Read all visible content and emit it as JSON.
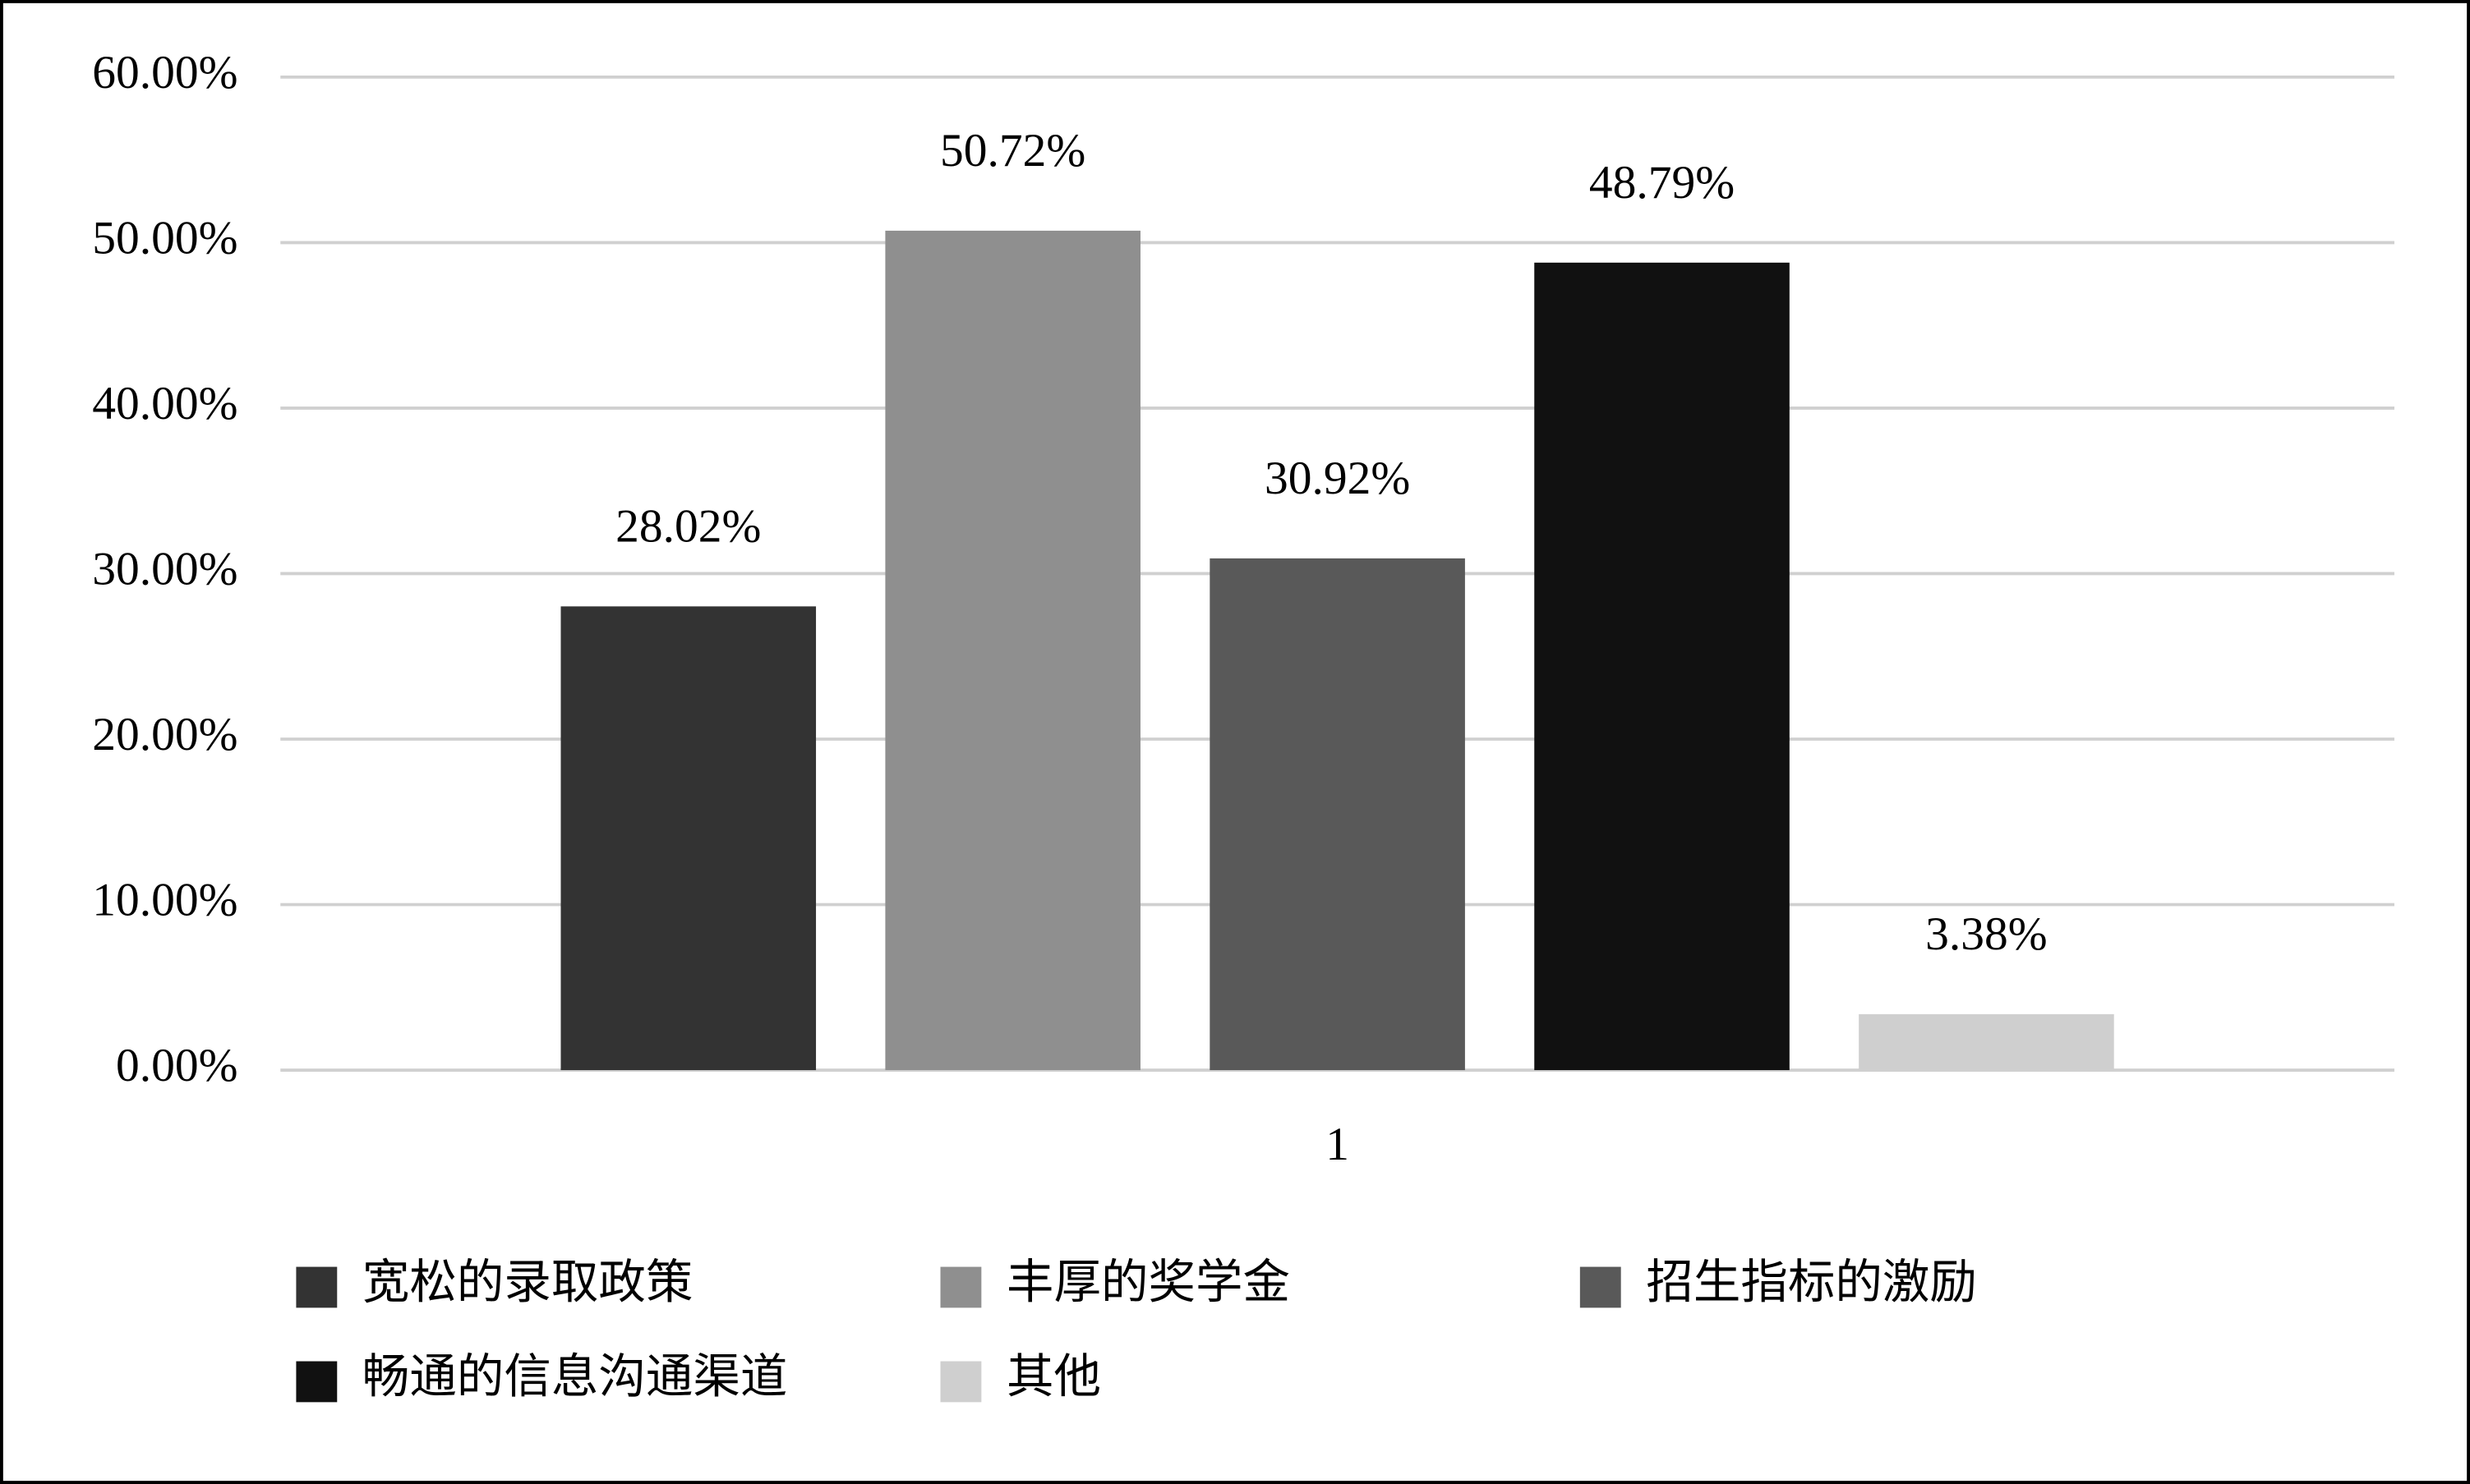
{
  "chart_data": {
    "type": "bar",
    "categories": [
      "1"
    ],
    "series": [
      {
        "name": "宽松的录取政策",
        "color": "#333333",
        "values": [
          28.02
        ],
        "value_labels": [
          "28.02%"
        ]
      },
      {
        "name": "丰厚的奖学金",
        "color": "#8f8f8f",
        "values": [
          50.72
        ],
        "value_labels": [
          "50.72%"
        ]
      },
      {
        "name": "招生指标的激励",
        "color": "#595959",
        "values": [
          30.92
        ],
        "value_labels": [
          "30.92%"
        ]
      },
      {
        "name": "畅通的信息沟通渠道",
        "color": "#111111",
        "values": [
          48.79
        ],
        "value_labels": [
          "48.79%"
        ]
      },
      {
        "name": "其他",
        "color": "#cfcfcf",
        "values": [
          3.38
        ],
        "value_labels": [
          "3.38%"
        ]
      }
    ],
    "ylim": [
      0,
      60
    ],
    "yticks": [
      {
        "value": 0,
        "label": "0.00%"
      },
      {
        "value": 10,
        "label": "10.00%"
      },
      {
        "value": 20,
        "label": "20.00%"
      },
      {
        "value": 30,
        "label": "30.00%"
      },
      {
        "value": 40,
        "label": "40.00%"
      },
      {
        "value": 50,
        "label": "50.00%"
      },
      {
        "value": 60,
        "label": "60.00%"
      }
    ],
    "grid": true,
    "legend": "bottom"
  }
}
